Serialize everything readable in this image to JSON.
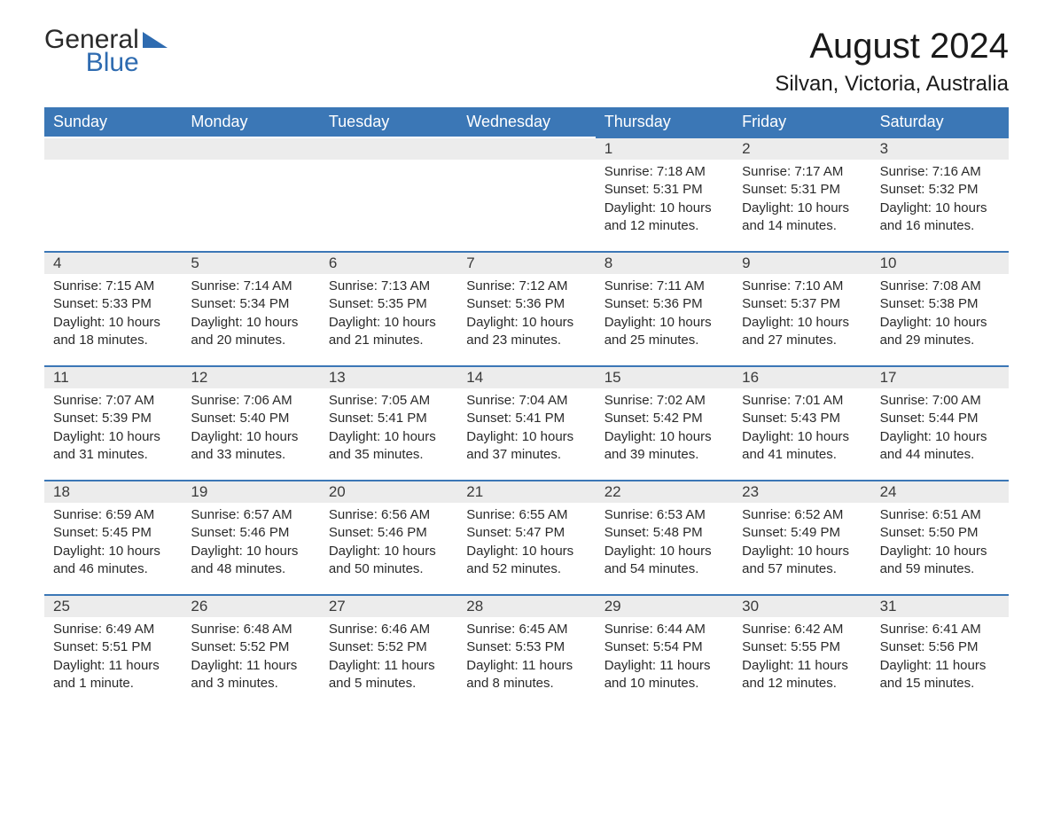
{
  "logo": {
    "text1": "General",
    "text2": "Blue"
  },
  "title": "August 2024",
  "location": "Silvan, Victoria, Australia",
  "colors": {
    "header_bg": "#3b77b6",
    "header_text": "#ffffff",
    "daynum_bg": "#ececec",
    "cell_border": "#3b77b6",
    "body_text": "#2a2a2a",
    "logo_accent": "#2e6bb0",
    "page_bg": "#ffffff"
  },
  "layout": {
    "type": "calendar-table",
    "columns": 7,
    "rows": 5,
    "title_fontsize": 40,
    "location_fontsize": 24,
    "weekday_fontsize": 18,
    "body_fontsize": 15,
    "daynum_fontsize": 17
  },
  "weekdays": [
    "Sunday",
    "Monday",
    "Tuesday",
    "Wednesday",
    "Thursday",
    "Friday",
    "Saturday"
  ],
  "weeks": [
    [
      {
        "empty": true
      },
      {
        "empty": true
      },
      {
        "empty": true
      },
      {
        "empty": true
      },
      {
        "num": "1",
        "sunrise": "Sunrise: 7:18 AM",
        "sunset": "Sunset: 5:31 PM",
        "daylight": "Daylight: 10 hours and 12 minutes."
      },
      {
        "num": "2",
        "sunrise": "Sunrise: 7:17 AM",
        "sunset": "Sunset: 5:31 PM",
        "daylight": "Daylight: 10 hours and 14 minutes."
      },
      {
        "num": "3",
        "sunrise": "Sunrise: 7:16 AM",
        "sunset": "Sunset: 5:32 PM",
        "daylight": "Daylight: 10 hours and 16 minutes."
      }
    ],
    [
      {
        "num": "4",
        "sunrise": "Sunrise: 7:15 AM",
        "sunset": "Sunset: 5:33 PM",
        "daylight": "Daylight: 10 hours and 18 minutes."
      },
      {
        "num": "5",
        "sunrise": "Sunrise: 7:14 AM",
        "sunset": "Sunset: 5:34 PM",
        "daylight": "Daylight: 10 hours and 20 minutes."
      },
      {
        "num": "6",
        "sunrise": "Sunrise: 7:13 AM",
        "sunset": "Sunset: 5:35 PM",
        "daylight": "Daylight: 10 hours and 21 minutes."
      },
      {
        "num": "7",
        "sunrise": "Sunrise: 7:12 AM",
        "sunset": "Sunset: 5:36 PM",
        "daylight": "Daylight: 10 hours and 23 minutes."
      },
      {
        "num": "8",
        "sunrise": "Sunrise: 7:11 AM",
        "sunset": "Sunset: 5:36 PM",
        "daylight": "Daylight: 10 hours and 25 minutes."
      },
      {
        "num": "9",
        "sunrise": "Sunrise: 7:10 AM",
        "sunset": "Sunset: 5:37 PM",
        "daylight": "Daylight: 10 hours and 27 minutes."
      },
      {
        "num": "10",
        "sunrise": "Sunrise: 7:08 AM",
        "sunset": "Sunset: 5:38 PM",
        "daylight": "Daylight: 10 hours and 29 minutes."
      }
    ],
    [
      {
        "num": "11",
        "sunrise": "Sunrise: 7:07 AM",
        "sunset": "Sunset: 5:39 PM",
        "daylight": "Daylight: 10 hours and 31 minutes."
      },
      {
        "num": "12",
        "sunrise": "Sunrise: 7:06 AM",
        "sunset": "Sunset: 5:40 PM",
        "daylight": "Daylight: 10 hours and 33 minutes."
      },
      {
        "num": "13",
        "sunrise": "Sunrise: 7:05 AM",
        "sunset": "Sunset: 5:41 PM",
        "daylight": "Daylight: 10 hours and 35 minutes."
      },
      {
        "num": "14",
        "sunrise": "Sunrise: 7:04 AM",
        "sunset": "Sunset: 5:41 PM",
        "daylight": "Daylight: 10 hours and 37 minutes."
      },
      {
        "num": "15",
        "sunrise": "Sunrise: 7:02 AM",
        "sunset": "Sunset: 5:42 PM",
        "daylight": "Daylight: 10 hours and 39 minutes."
      },
      {
        "num": "16",
        "sunrise": "Sunrise: 7:01 AM",
        "sunset": "Sunset: 5:43 PM",
        "daylight": "Daylight: 10 hours and 41 minutes."
      },
      {
        "num": "17",
        "sunrise": "Sunrise: 7:00 AM",
        "sunset": "Sunset: 5:44 PM",
        "daylight": "Daylight: 10 hours and 44 minutes."
      }
    ],
    [
      {
        "num": "18",
        "sunrise": "Sunrise: 6:59 AM",
        "sunset": "Sunset: 5:45 PM",
        "daylight": "Daylight: 10 hours and 46 minutes."
      },
      {
        "num": "19",
        "sunrise": "Sunrise: 6:57 AM",
        "sunset": "Sunset: 5:46 PM",
        "daylight": "Daylight: 10 hours and 48 minutes."
      },
      {
        "num": "20",
        "sunrise": "Sunrise: 6:56 AM",
        "sunset": "Sunset: 5:46 PM",
        "daylight": "Daylight: 10 hours and 50 minutes."
      },
      {
        "num": "21",
        "sunrise": "Sunrise: 6:55 AM",
        "sunset": "Sunset: 5:47 PM",
        "daylight": "Daylight: 10 hours and 52 minutes."
      },
      {
        "num": "22",
        "sunrise": "Sunrise: 6:53 AM",
        "sunset": "Sunset: 5:48 PM",
        "daylight": "Daylight: 10 hours and 54 minutes."
      },
      {
        "num": "23",
        "sunrise": "Sunrise: 6:52 AM",
        "sunset": "Sunset: 5:49 PM",
        "daylight": "Daylight: 10 hours and 57 minutes."
      },
      {
        "num": "24",
        "sunrise": "Sunrise: 6:51 AM",
        "sunset": "Sunset: 5:50 PM",
        "daylight": "Daylight: 10 hours and 59 minutes."
      }
    ],
    [
      {
        "num": "25",
        "sunrise": "Sunrise: 6:49 AM",
        "sunset": "Sunset: 5:51 PM",
        "daylight": "Daylight: 11 hours and 1 minute."
      },
      {
        "num": "26",
        "sunrise": "Sunrise: 6:48 AM",
        "sunset": "Sunset: 5:52 PM",
        "daylight": "Daylight: 11 hours and 3 minutes."
      },
      {
        "num": "27",
        "sunrise": "Sunrise: 6:46 AM",
        "sunset": "Sunset: 5:52 PM",
        "daylight": "Daylight: 11 hours and 5 minutes."
      },
      {
        "num": "28",
        "sunrise": "Sunrise: 6:45 AM",
        "sunset": "Sunset: 5:53 PM",
        "daylight": "Daylight: 11 hours and 8 minutes."
      },
      {
        "num": "29",
        "sunrise": "Sunrise: 6:44 AM",
        "sunset": "Sunset: 5:54 PM",
        "daylight": "Daylight: 11 hours and 10 minutes."
      },
      {
        "num": "30",
        "sunrise": "Sunrise: 6:42 AM",
        "sunset": "Sunset: 5:55 PM",
        "daylight": "Daylight: 11 hours and 12 minutes."
      },
      {
        "num": "31",
        "sunrise": "Sunrise: 6:41 AM",
        "sunset": "Sunset: 5:56 PM",
        "daylight": "Daylight: 11 hours and 15 minutes."
      }
    ]
  ]
}
